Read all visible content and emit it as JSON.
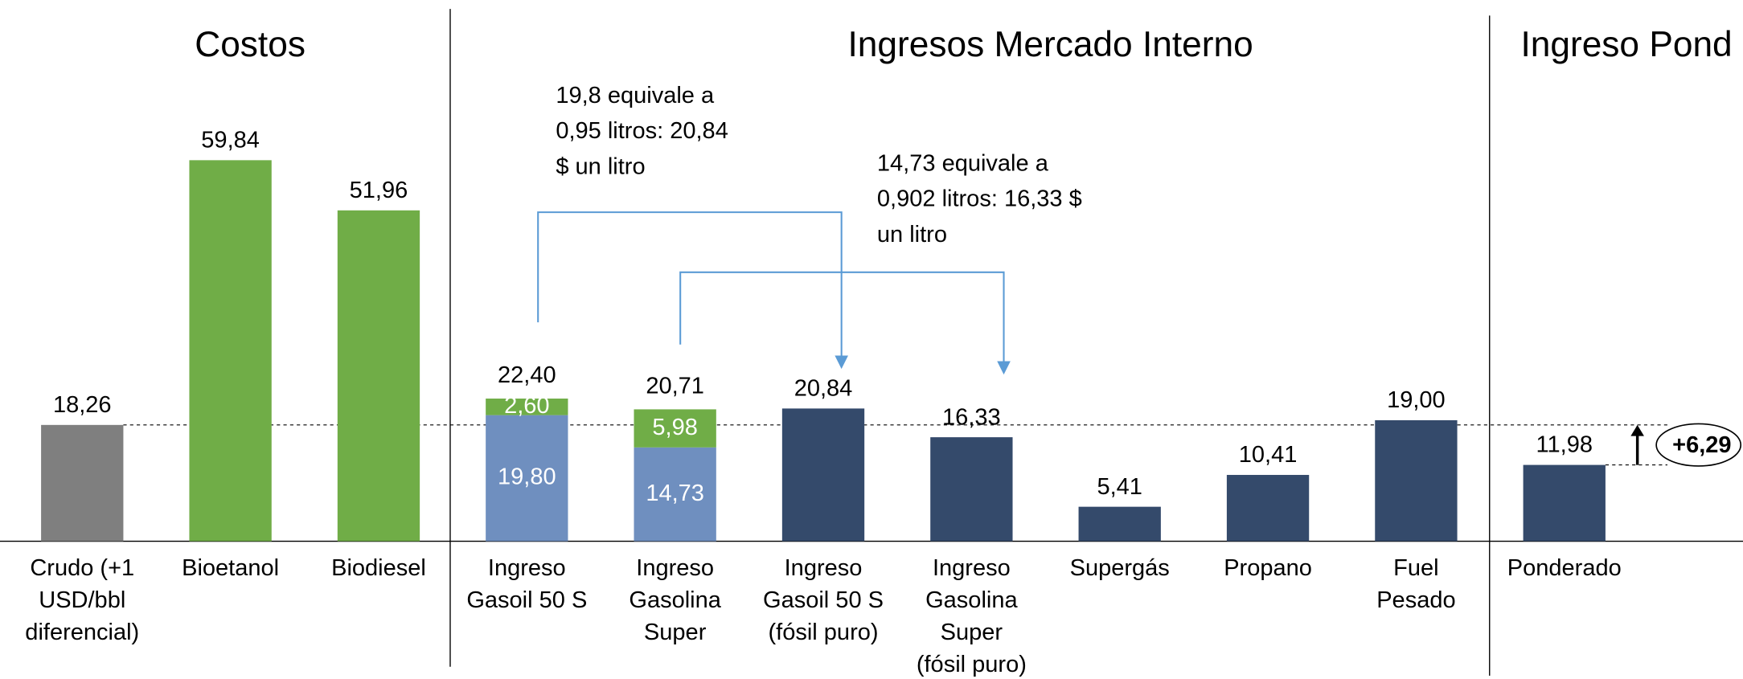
{
  "chart_data": {
    "type": "bar",
    "sections": [
      "Costos",
      "Ingresos Mercado Interno",
      "Ingreso Pond"
    ],
    "categories": [
      [
        "Crudo (+1",
        "USD/bbl",
        "diferencial)"
      ],
      [
        "Bioetanol"
      ],
      [
        "Biodiesel"
      ],
      [
        "Ingreso",
        "Gasoil 50 S"
      ],
      [
        "Ingreso",
        "Gasolina",
        "Super"
      ],
      [
        "Ingreso",
        "Gasoil 50 S",
        "(fósil puro)"
      ],
      [
        "Ingreso",
        "Gasolina",
        "Super",
        "(fósil puro)"
      ],
      [
        "Supergás"
      ],
      [
        "Propano"
      ],
      [
        "Fuel",
        "Pesado"
      ],
      [
        "Ponderado"
      ]
    ],
    "series": [
      {
        "values": [
          18.26,
          59.84,
          51.96,
          19.8,
          14.73,
          20.84,
          16.33,
          5.41,
          10.41,
          19.0,
          11.98
        ],
        "value_labels": [
          "18,26",
          "59,84",
          "51,96",
          "19,80",
          "14,73",
          "20,84",
          "16,33",
          "5,41",
          "10,41",
          "19,00",
          "11,98"
        ],
        "colors": [
          "#7f7f7f",
          "#70ad47",
          "#70ad47",
          "#6f8fbf",
          "#6f8fbf",
          "#344a6b",
          "#344a6b",
          "#344a6b",
          "#344a6b",
          "#344a6b",
          "#344a6b"
        ]
      },
      {
        "values": [
          null,
          null,
          null,
          2.6,
          5.98,
          null,
          null,
          null,
          null,
          null,
          null
        ],
        "value_labels": [
          null,
          null,
          null,
          "2,60",
          "5,98",
          null,
          null,
          null,
          null,
          null,
          null
        ],
        "color": "#70ad47"
      }
    ],
    "totals": [
      null,
      null,
      null,
      22.4,
      20.71,
      null,
      null,
      null,
      null,
      null,
      null
    ],
    "total_labels": [
      null,
      null,
      null,
      "22,40",
      "20,71",
      null,
      null,
      null,
      null,
      null,
      null
    ],
    "annotations": [
      [
        "19,8 equivale a",
        "0,95 litros: 20,84",
        "$ un litro"
      ],
      [
        "14,73 equivale a",
        "0,902 litros: 16,33 $",
        "un litro"
      ]
    ],
    "difference": {
      "value": 6.29,
      "label": "+6,29"
    },
    "ylim": [
      0,
      85
    ]
  }
}
